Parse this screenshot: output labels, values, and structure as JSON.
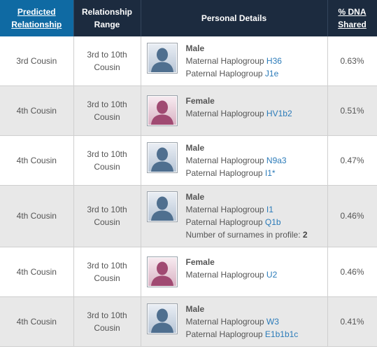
{
  "headers": {
    "predicted_relationship": "Predicted Relationship",
    "relationship_range": "Relationship Range",
    "personal_details": "Personal Details",
    "dna_shared": "% DNA Shared"
  },
  "colors": {
    "header_bg": "#1c2b3f",
    "sorted_header_bg": "#0f6aa3",
    "link": "#2b7bb9",
    "male_avatar": "#4f6f8f",
    "female_avatar": "#a04a72"
  },
  "rows": [
    {
      "relationship": "3rd Cousin",
      "range": "3rd to 10th Cousin",
      "gender": "Male",
      "avatar_icon": "male-avatar-icon",
      "maternal_label": "Maternal Haplogroup",
      "maternal": "H36",
      "paternal_label": "Paternal Haplogroup",
      "paternal": "J1e",
      "shared": "0.63%"
    },
    {
      "relationship": "4th Cousin",
      "range": "3rd to 10th Cousin",
      "gender": "Female",
      "avatar_icon": "female-avatar-icon",
      "maternal_label": "Maternal Haplogroup",
      "maternal": "HV1b2",
      "shared": "0.51%"
    },
    {
      "relationship": "4th Cousin",
      "range": "3rd to 10th Cousin",
      "gender": "Male",
      "avatar_icon": "male-avatar-icon",
      "maternal_label": "Maternal Haplogroup",
      "maternal": "N9a3",
      "paternal_label": "Paternal Haplogroup",
      "paternal": "I1*",
      "shared": "0.47%"
    },
    {
      "relationship": "4th Cousin",
      "range": "3rd to 10th Cousin",
      "gender": "Male",
      "avatar_icon": "male-avatar-icon",
      "maternal_label": "Maternal Haplogroup",
      "maternal": "I1",
      "paternal_label": "Paternal Haplogroup",
      "paternal": "Q1b",
      "surnames_label": "Number of surnames in profile:",
      "surnames": "2",
      "shared": "0.46%"
    },
    {
      "relationship": "4th Cousin",
      "range": "3rd to 10th Cousin",
      "gender": "Female",
      "avatar_icon": "female-avatar-icon",
      "maternal_label": "Maternal Haplogroup",
      "maternal": "U2",
      "shared": "0.46%"
    },
    {
      "relationship": "4th Cousin",
      "range": "3rd to 10th Cousin",
      "gender": "Male",
      "avatar_icon": "male-avatar-icon",
      "maternal_label": "Maternal Haplogroup",
      "maternal": "W3",
      "paternal_label": "Paternal Haplogroup",
      "paternal": "E1b1b1c",
      "shared": "0.41%"
    }
  ]
}
